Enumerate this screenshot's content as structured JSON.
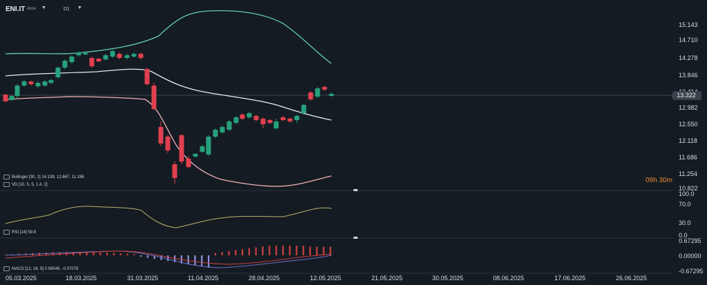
{
  "header": {
    "symbol": "ENI.IT",
    "exchange": "Alcie",
    "timeframe": "D1",
    "symbol_menu_icon": "chevron-down-icon",
    "timeframe_menu_icon": "chevron-down-icon"
  },
  "price_axis": {
    "labels": [
      "15.143",
      "14.710",
      "14.278",
      "13.846",
      "13.414",
      "12.982",
      "12.550",
      "12.118",
      "11.686",
      "11.254",
      "10.822"
    ],
    "current_price": "13.322",
    "countdown": "09h 30m"
  },
  "date_axis": {
    "labels": [
      "05.03.2025",
      "18.03.2025",
      "31.03.2025",
      "11.04.2025",
      "28.04.2025",
      "12.05.2025",
      "21.05.2025",
      "30.05.2025",
      "08.06.2025",
      "17.06.2025",
      "26.06.2025"
    ]
  },
  "indicators": {
    "bollinger": "Bollinger [30, 2] 14.139, 12.667, 11.196",
    "vd": "VD [10, 5, 5, 1.4, 2]",
    "rsi": "RSI [14] 59.8",
    "macd": "MACD [12, 26, 9] 0.08549, -0.07079"
  },
  "rsi_axis": {
    "labels": [
      "100.0",
      "70.0",
      "30.0",
      "0.0"
    ]
  },
  "macd_axis": {
    "labels": [
      "0.67295",
      "0.00000",
      "-0.67295"
    ]
  },
  "colors": {
    "background": "#151b22",
    "bull": "#26a17b",
    "bear": "#e04050",
    "upper_band": "#5fd0b0",
    "middle_band": "#e8ecef",
    "lower_band": "#f0b4b8",
    "rsi_line": "#b9b36a",
    "countdown": "#e58a2f"
  }
}
